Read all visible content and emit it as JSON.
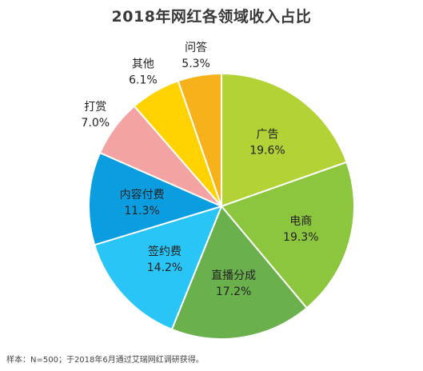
{
  "chart_data": {
    "type": "pie",
    "title": "2018年网红各领域收入占比",
    "slices": [
      {
        "label": "广告",
        "value": 19.6,
        "value_label": "19.6%",
        "color": "#b2d235"
      },
      {
        "label": "电商",
        "value": 19.3,
        "value_label": "19.3%",
        "color": "#8cc63f"
      },
      {
        "label": "直播分成",
        "value": 17.2,
        "value_label": "17.2%",
        "color": "#6ab04c"
      },
      {
        "label": "签约费",
        "value": 14.2,
        "value_label": "14.2%",
        "color": "#29c5f6"
      },
      {
        "label": "内容付费",
        "value": 11.3,
        "value_label": "11.3%",
        "color": "#0a9ee0"
      },
      {
        "label": "打赏",
        "value": 7.0,
        "value_label": "7.0%",
        "color": "#f4a3a3"
      },
      {
        "label": "其他",
        "value": 6.1,
        "value_label": "6.1%",
        "color": "#ffd200"
      },
      {
        "label": "问答",
        "value": 5.3,
        "value_label": "5.3%",
        "color": "#f7b21b"
      }
    ]
  },
  "footnote": "样本：N=500；于2018年6月通过艾瑞网红调研获得。"
}
